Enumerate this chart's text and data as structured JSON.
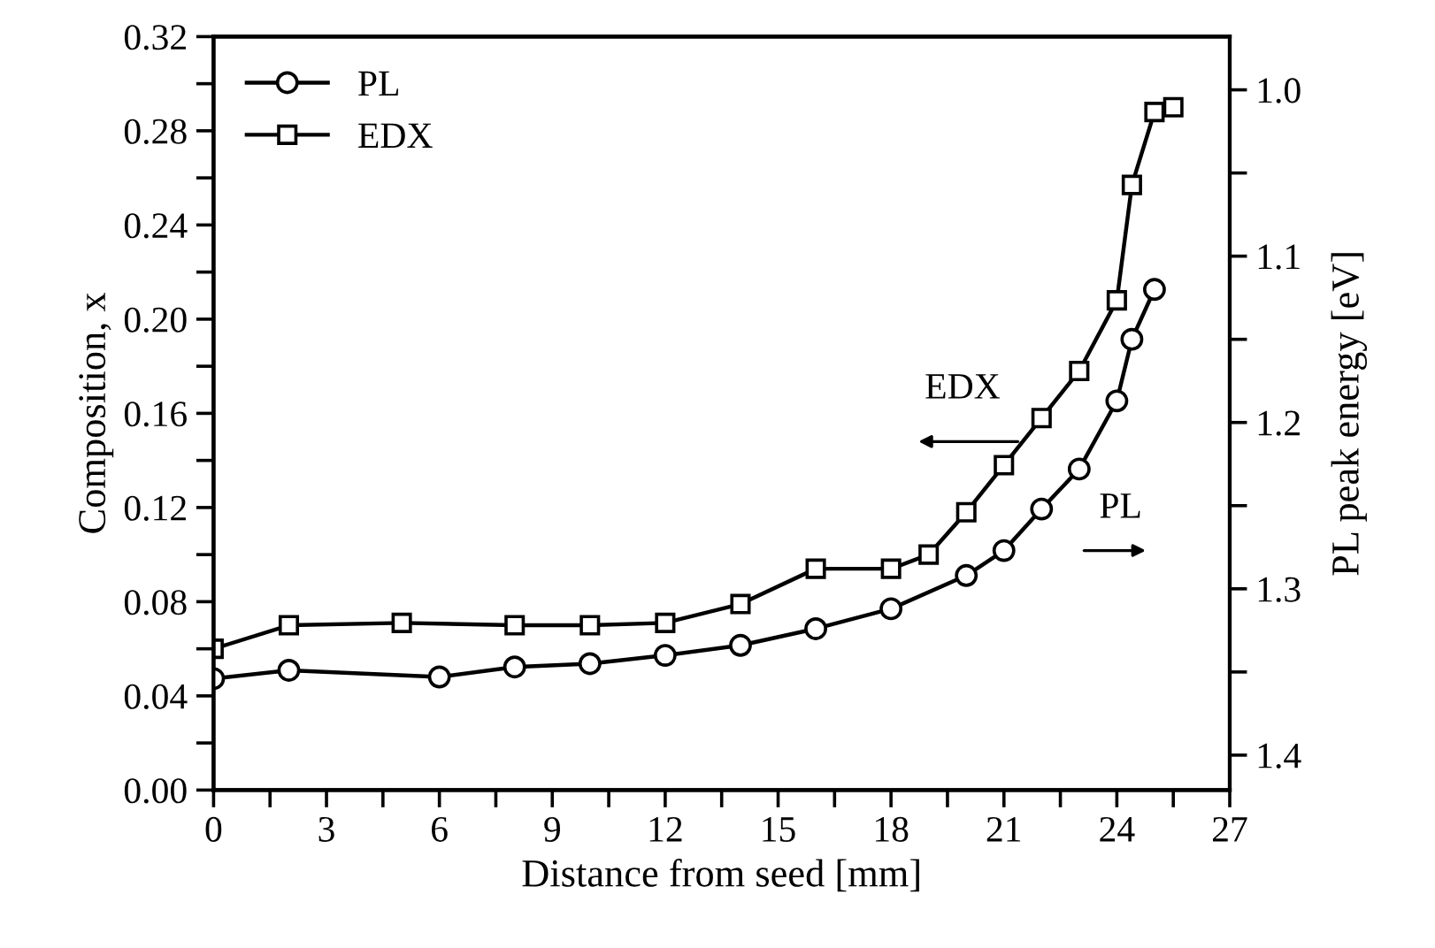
{
  "chart_data": {
    "type": "line",
    "xlabel": "Distance from seed [mm]",
    "ylabel": "Composition, x",
    "y2label": "PL peak energy [eV]",
    "xlim": [
      0,
      27
    ],
    "xticks": [
      0,
      {
        "value": 1.5,
        "label": null
      },
      3,
      {
        "value": 4.5,
        "label": null
      },
      6,
      {
        "value": 7.5,
        "label": null
      },
      9,
      {
        "value": 10.5,
        "label": null
      },
      12,
      {
        "value": 13.5,
        "label": null
      },
      15,
      {
        "value": 16.5,
        "label": null
      },
      18,
      {
        "value": 19.5,
        "label": null
      },
      21,
      {
        "value": 22.5,
        "label": null
      },
      24,
      {
        "value": 25.5,
        "label": null
      },
      27
    ],
    "ylim": [
      0,
      0.32
    ],
    "yticks": [
      {
        "value": 0,
        "label": "0.00"
      },
      {
        "value": 0.02,
        "label": null
      },
      {
        "value": 0.04,
        "label": "0.04"
      },
      {
        "value": 0.06,
        "label": null
      },
      {
        "value": 0.08,
        "label": "0.08"
      },
      {
        "value": 0.1,
        "label": null
      },
      {
        "value": 0.12,
        "label": "0.12"
      },
      {
        "value": 0.14,
        "label": null
      },
      {
        "value": 0.16,
        "label": "0.16"
      },
      {
        "value": 0.18,
        "label": null
      },
      {
        "value": 0.2,
        "label": "0.20"
      },
      {
        "value": 0.22,
        "label": null
      },
      {
        "value": 0.24,
        "label": "0.24"
      },
      {
        "value": 0.26,
        "label": null
      },
      {
        "value": 0.28,
        "label": "0.28"
      },
      {
        "value": 0.3,
        "label": null
      },
      {
        "value": 0.32,
        "label": "0.32"
      }
    ],
    "y2lim": [
      1.421,
      0.968
    ],
    "y2ticks": [
      {
        "value": 1.0,
        "label": "1.0"
      },
      {
        "value": 1.05,
        "label": null
      },
      {
        "value": 1.1,
        "label": "1.1"
      },
      {
        "value": 1.15,
        "label": null
      },
      {
        "value": 1.2,
        "label": "1.2"
      },
      {
        "value": 1.25,
        "label": null
      },
      {
        "value": 1.3,
        "label": "1.3"
      },
      {
        "value": 1.35,
        "label": null
      },
      {
        "value": 1.4,
        "label": "1.4"
      }
    ],
    "grid": false,
    "legend": "top left",
    "line_style": "solid",
    "series": [
      {
        "name": "PL",
        "color": "#000000",
        "marker": "circle",
        "axis": "y2",
        "x": [
          0,
          2,
          6,
          8,
          10,
          12,
          14,
          16,
          18,
          20,
          21,
          22,
          23,
          24,
          24.4,
          25
        ],
        "values": [
          1.354,
          1.349,
          1.353,
          1.347,
          1.345,
          1.34,
          1.334,
          1.324,
          1.312,
          1.292,
          1.277,
          1.252,
          1.228,
          1.187,
          1.15,
          1.12
        ]
      },
      {
        "name": "EDX",
        "color": "#000000",
        "marker": "square",
        "x": [
          0,
          2,
          5,
          8,
          10,
          12,
          14,
          16,
          18,
          19,
          20,
          21,
          22,
          23,
          24,
          24.4,
          25,
          25.5
        ],
        "values": [
          0.06,
          0.07,
          0.071,
          0.07,
          0.07,
          0.071,
          0.079,
          0.094,
          0.094,
          0.1,
          0.118,
          0.138,
          0.158,
          0.178,
          0.208,
          0.257,
          0.288,
          0.29
        ]
      }
    ],
    "annotations": [
      "EDX",
      "PL"
    ]
  }
}
